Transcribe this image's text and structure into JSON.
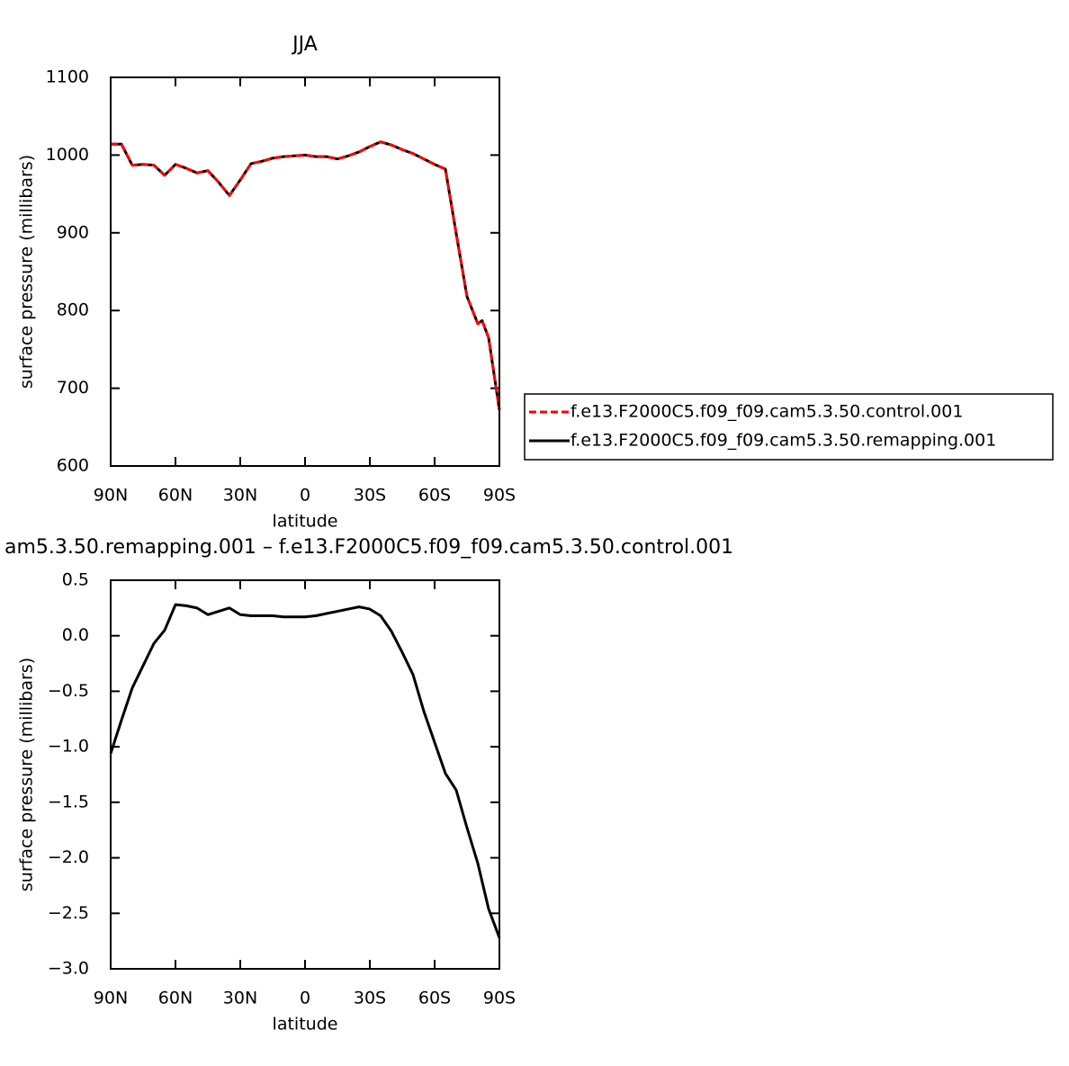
{
  "chart_data": [
    {
      "type": "line",
      "title": "JJA",
      "xlabel": "latitude",
      "ylabel": "surface pressure (millibars)",
      "x": [
        90,
        85,
        80,
        75,
        70,
        65,
        60,
        55,
        50,
        45,
        40,
        35,
        30,
        25,
        20,
        15,
        10,
        5,
        0,
        -5,
        -10,
        -15,
        -20,
        -25,
        -30,
        -35,
        -40,
        -45,
        -50,
        -55,
        -60,
        -65,
        -70,
        -75,
        -80,
        -82,
        -85,
        -90
      ],
      "series": [
        {
          "name": "f.e13.F2000C5.f09_f09.cam5.3.50.control.001",
          "color": "#ff0000",
          "line_style": "dashed",
          "values": [
            1014,
            1014,
            987,
            988,
            987,
            974,
            988,
            983,
            977,
            980,
            965,
            948,
            968,
            989,
            992,
            996,
            998,
            999,
            1000,
            998,
            998,
            995,
            999,
            1004,
            1011,
            1017,
            1013,
            1007,
            1002,
            995,
            988,
            982,
            899,
            818,
            783,
            787,
            765,
            672
          ]
        },
        {
          "name": "f.e13.F2000C5.f09_f09.cam5.3.50.remapping.001",
          "color": "#000000",
          "line_style": "solid",
          "values": [
            1014,
            1014,
            987,
            988,
            987,
            974,
            988,
            983,
            977,
            980,
            965,
            948,
            968,
            989,
            992,
            996,
            998,
            999,
            1000,
            998,
            998,
            995,
            999,
            1004,
            1011,
            1017,
            1013,
            1007,
            1002,
            995,
            988,
            982,
            899,
            818,
            783,
            787,
            765,
            672
          ]
        }
      ],
      "xlim": [
        90,
        -90
      ],
      "xticks": [
        {
          "value": 90,
          "label": "90N"
        },
        {
          "value": 60,
          "label": "60N"
        },
        {
          "value": 30,
          "label": "30N"
        },
        0,
        {
          "value": -30,
          "label": "30S"
        },
        {
          "value": -60,
          "label": "60S"
        },
        {
          "value": -90,
          "label": "90S"
        }
      ],
      "ylim": [
        600,
        1100
      ],
      "yticks": [
        600,
        700,
        800,
        900,
        1000,
        1100
      ],
      "legend": "right"
    },
    {
      "type": "line",
      "title": "am5.3.50.remapping.001 – f.e13.F2000C5.f09_f09.cam5.3.50.control.001",
      "xlabel": "latitude",
      "ylabel": "surface pressure (millibars)",
      "x": [
        90,
        85,
        80,
        75,
        70,
        65,
        60,
        55,
        50,
        45,
        40,
        35,
        30,
        25,
        20,
        15,
        10,
        5,
        0,
        -5,
        -10,
        -15,
        -20,
        -25,
        -30,
        -35,
        -40,
        -45,
        -50,
        -55,
        -60,
        -65,
        -70,
        -75,
        -80,
        -85,
        -90
      ],
      "values": [
        -1.06,
        -0.76,
        -0.47,
        -0.27,
        -0.07,
        0.05,
        0.28,
        0.27,
        0.25,
        0.19,
        0.22,
        0.25,
        0.19,
        0.18,
        0.18,
        0.18,
        0.17,
        0.17,
        0.17,
        0.18,
        0.2,
        0.22,
        0.24,
        0.26,
        0.24,
        0.18,
        0.04,
        -0.15,
        -0.35,
        -0.68,
        -0.96,
        -1.24,
        -1.39,
        -1.73,
        -2.05,
        -2.46,
        -2.72
      ],
      "color": "#000000",
      "xlim": [
        90,
        -90
      ],
      "xticks": [
        {
          "value": 90,
          "label": "90N"
        },
        {
          "value": 60,
          "label": "60N"
        },
        {
          "value": 30,
          "label": "30N"
        },
        0,
        {
          "value": -30,
          "label": "30S"
        },
        {
          "value": -60,
          "label": "60S"
        },
        {
          "value": -90,
          "label": "90S"
        }
      ],
      "ylim": [
        -3,
        0.5
      ],
      "yticks": [
        {
          "value": -3,
          "label": "−3.0"
        },
        {
          "value": -2.5,
          "label": "−2.5"
        },
        {
          "value": -2,
          "label": "−2.0"
        },
        {
          "value": -1.5,
          "label": "−1.5"
        },
        {
          "value": -1,
          "label": "−1.0"
        },
        {
          "value": -0.5,
          "label": "−0.5"
        },
        {
          "value": 0,
          "label": "0.0"
        },
        0.5
      ]
    }
  ]
}
